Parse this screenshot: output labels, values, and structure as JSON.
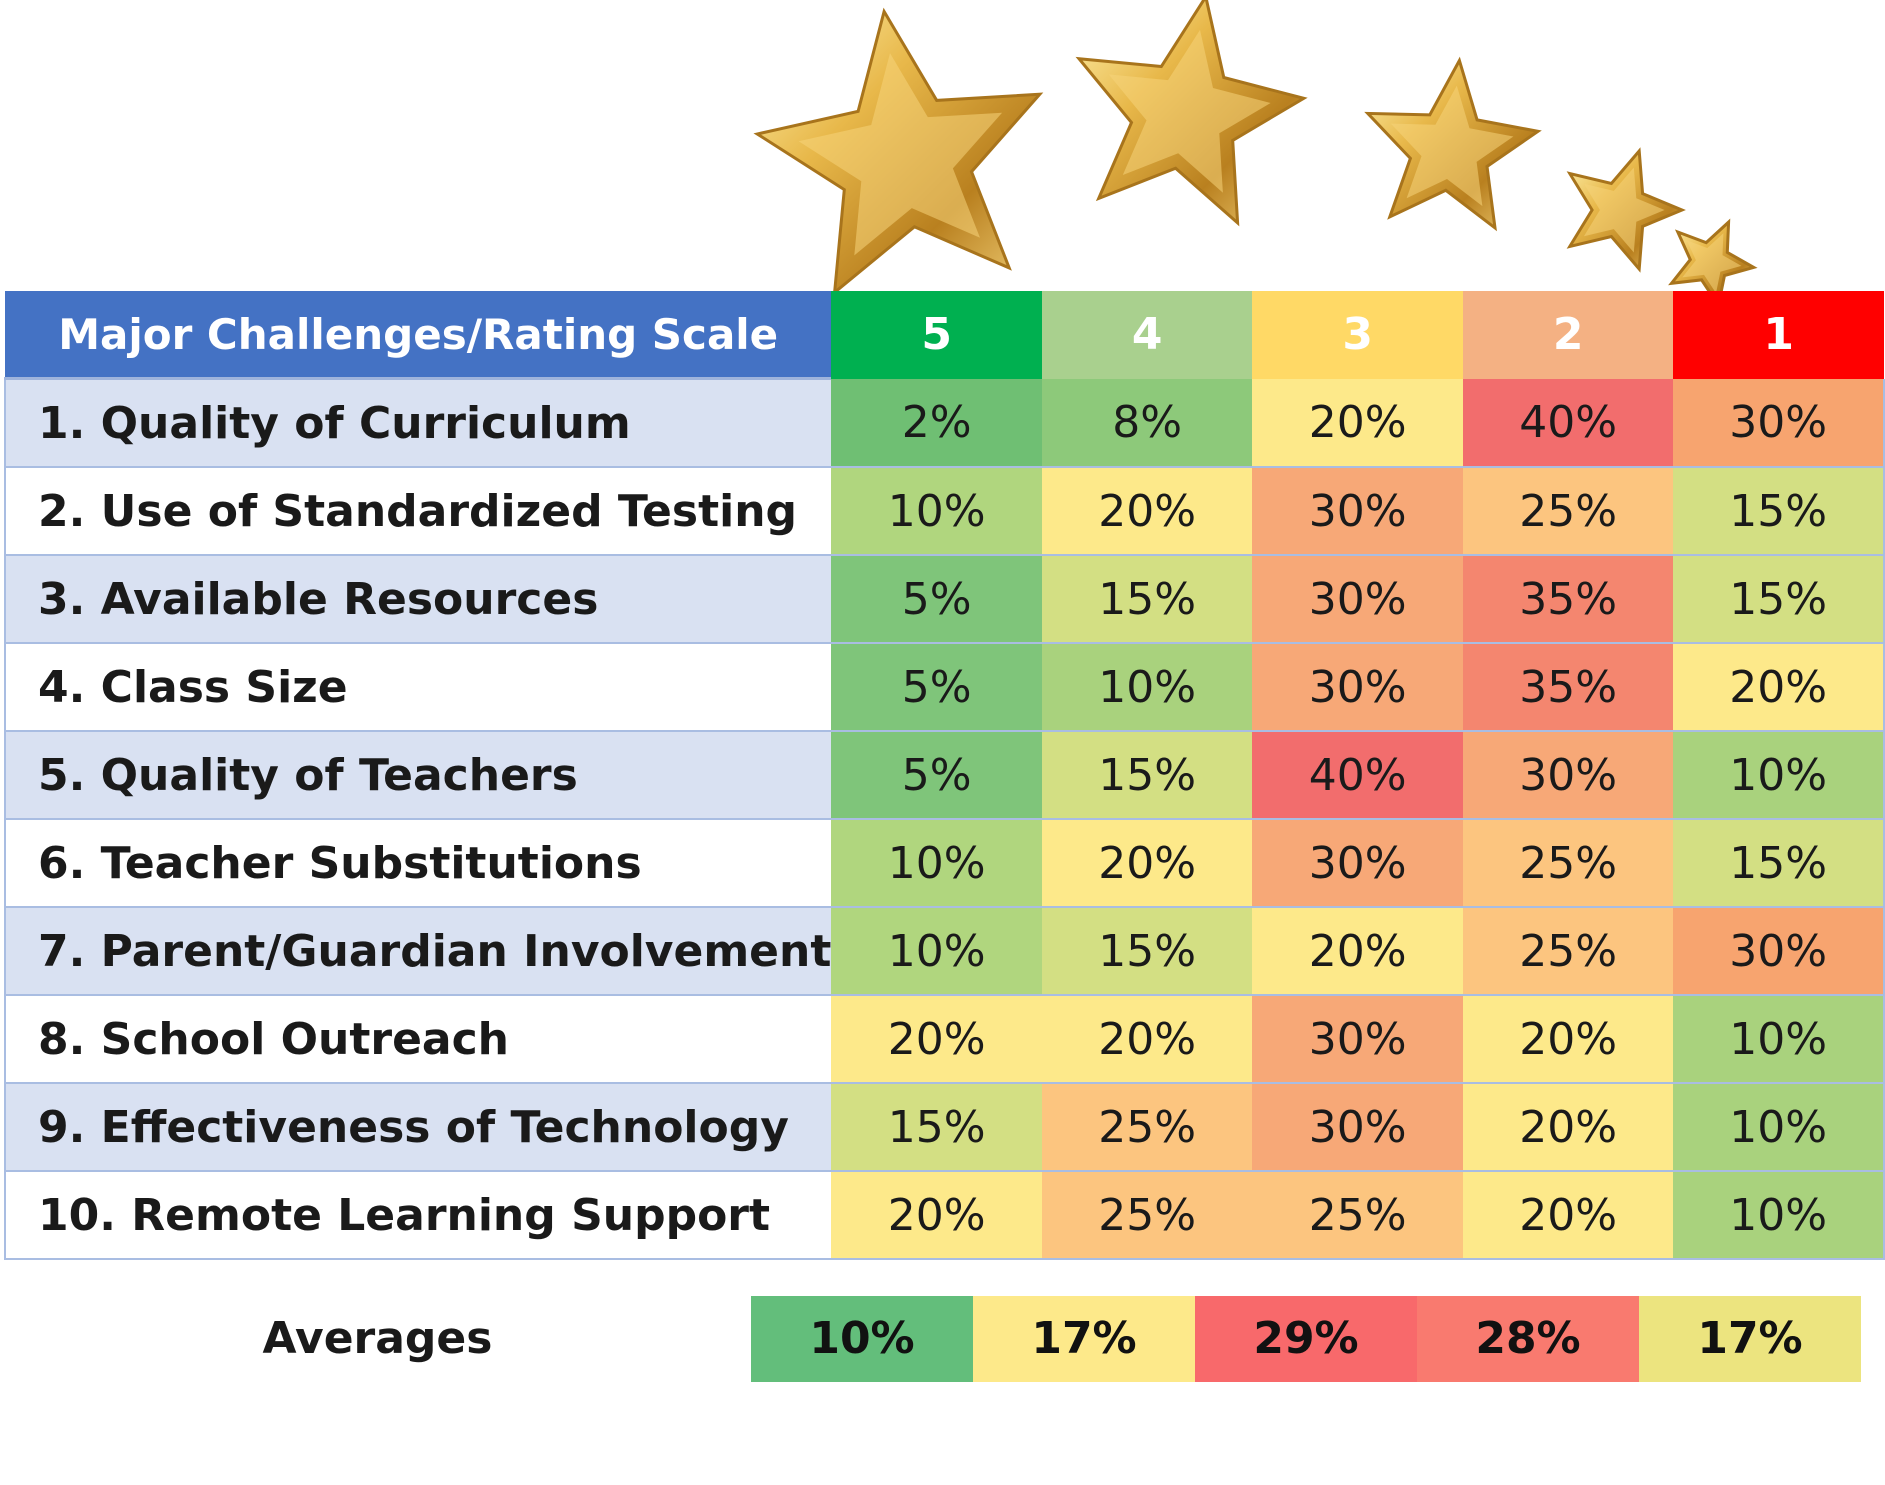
{
  "colors": {
    "header_label_bg": "#4472c4",
    "rating_header_bg": [
      "#00b050",
      "#a9d08e",
      "#ffd966",
      "#f4b183",
      "#ff0000"
    ]
  },
  "stars_icon": "gold-star-icon",
  "chart_data": {
    "type": "table",
    "title": "",
    "header_label": "Major Challenges/Rating Scale",
    "ratings": [
      "5",
      "4",
      "3",
      "2",
      "1"
    ],
    "rows": [
      {
        "label": "1.  Quality of Curriculum",
        "values": [
          "2%",
          "8%",
          "20%",
          "40%",
          "30%"
        ],
        "colors": [
          "#6fbf73",
          "#8dc97a",
          "#fde98a",
          "#f26d6d",
          "#f7a46f"
        ]
      },
      {
        "label": "2.  Use of Standardized Testing",
        "values": [
          "10%",
          "20%",
          "30%",
          "25%",
          "15%"
        ],
        "colors": [
          "#b0d67e",
          "#fde98a",
          "#f7a877",
          "#fcc57f",
          "#d3df83"
        ]
      },
      {
        "label": "3.  Available Resources",
        "values": [
          "5%",
          "15%",
          "30%",
          "35%",
          "15%"
        ],
        "colors": [
          "#7fc57a",
          "#d3df83",
          "#f7a877",
          "#f4866f",
          "#d3df83"
        ]
      },
      {
        "label": "4.  Class Size",
        "values": [
          "5%",
          "10%",
          "30%",
          "35%",
          "20%"
        ],
        "colors": [
          "#7fc57a",
          "#a9d27d",
          "#f7a877",
          "#f4866f",
          "#fde98a"
        ]
      },
      {
        "label": "5.  Quality of Teachers",
        "values": [
          "5%",
          "15%",
          "40%",
          "30%",
          "10%"
        ],
        "colors": [
          "#7fc57a",
          "#d3df83",
          "#f26d6d",
          "#f7a877",
          "#a9d27d"
        ]
      },
      {
        "label": "6.  Teacher Substitutions",
        "values": [
          "10%",
          "20%",
          "30%",
          "25%",
          "15%"
        ],
        "colors": [
          "#b0d67e",
          "#fde98a",
          "#f7a877",
          "#fcc57f",
          "#d3df83"
        ]
      },
      {
        "label": "7.  Parent/Guardian Involvement",
        "values": [
          "10%",
          "15%",
          "20%",
          "25%",
          "30%"
        ],
        "colors": [
          "#b0d67e",
          "#d3df83",
          "#fde98a",
          "#fcc57f",
          "#f7a46f"
        ]
      },
      {
        "label": "8.  School Outreach",
        "values": [
          "20%",
          "20%",
          "30%",
          "20%",
          "10%"
        ],
        "colors": [
          "#fde98a",
          "#fde98a",
          "#f7a877",
          "#fde98a",
          "#a9d27d"
        ]
      },
      {
        "label": "9.  Effectiveness of Technology",
        "values": [
          "15%",
          "25%",
          "30%",
          "20%",
          "10%"
        ],
        "colors": [
          "#d3df83",
          "#fcc57f",
          "#f7a877",
          "#fde98a",
          "#a9d27d"
        ]
      },
      {
        "label": "10.  Remote Learning Support",
        "values": [
          "20%",
          "25%",
          "25%",
          "20%",
          "10%"
        ],
        "colors": [
          "#fde98a",
          "#fcc57f",
          "#fcc57f",
          "#fde98a",
          "#a9d27d"
        ]
      }
    ],
    "averages": {
      "label": "Averages",
      "values": [
        "10%",
        "17%",
        "29%",
        "28%",
        "17%"
      ],
      "colors": [
        "#63be7b",
        "#fde98a",
        "#f8696b",
        "#f97a6f",
        "#ece47f"
      ]
    }
  }
}
